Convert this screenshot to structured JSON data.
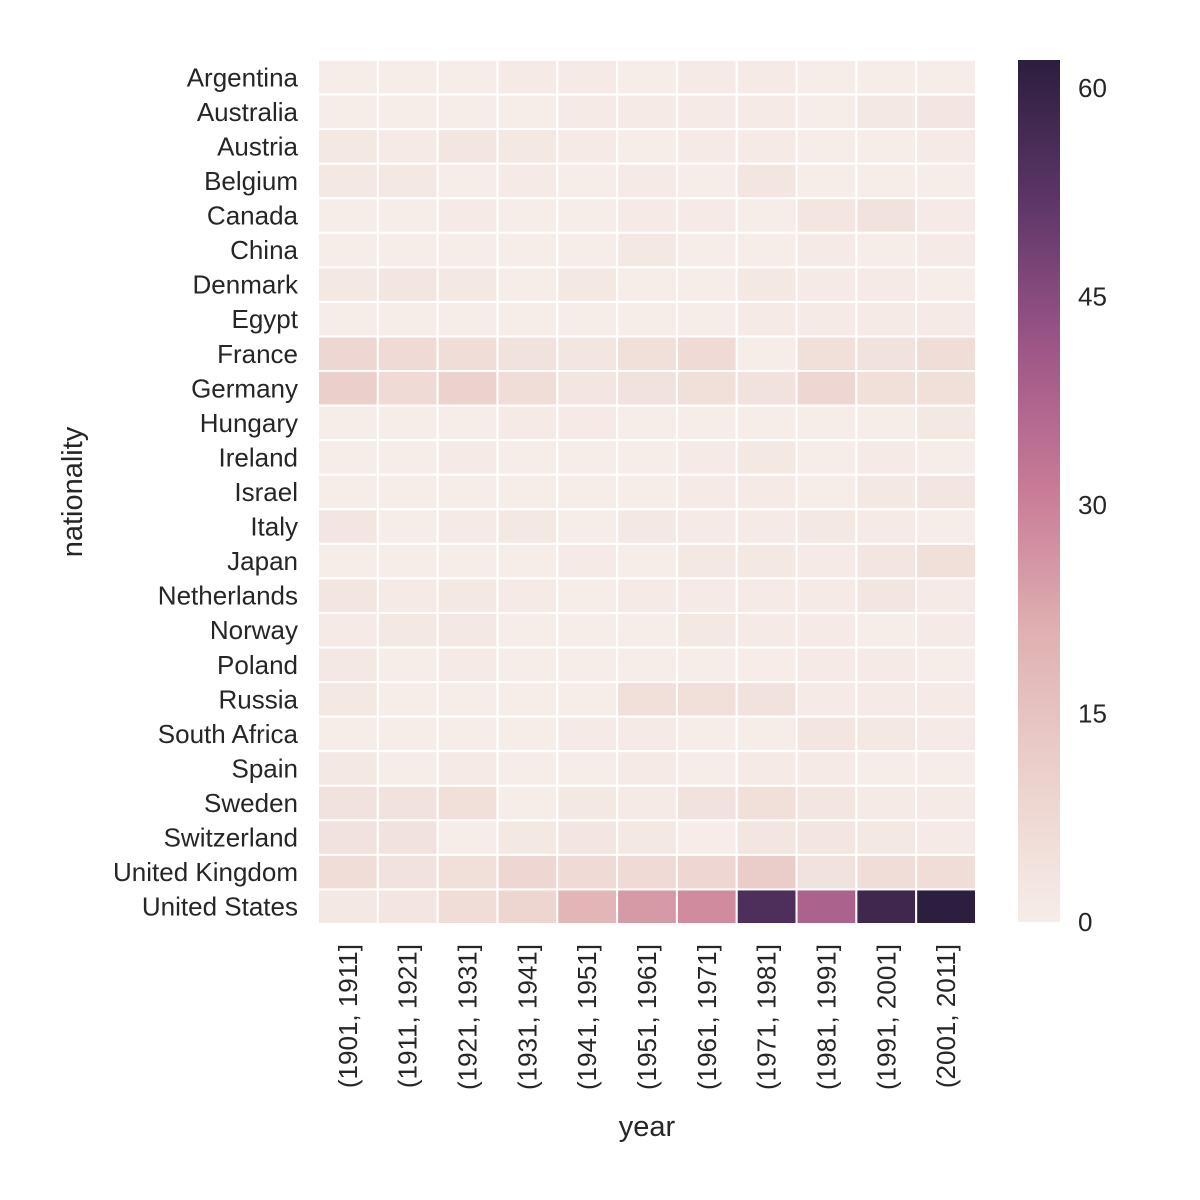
{
  "chart_data": {
    "type": "heatmap",
    "title": "",
    "xlabel": "year",
    "ylabel": "nationality",
    "x_categories": [
      "(1901, 1911]",
      "(1911, 1921]",
      "(1921, 1931]",
      "(1931, 1941]",
      "(1941, 1951]",
      "(1951, 1961]",
      "(1961, 1971]",
      "(1971, 1981]",
      "(1981, 1991]",
      "(1991, 2001]",
      "(2001, 2011]"
    ],
    "y_categories": [
      "Argentina",
      "Australia",
      "Austria",
      "Belgium",
      "Canada",
      "China",
      "Denmark",
      "Egypt",
      "France",
      "Germany",
      "Hungary",
      "Ireland",
      "Israel",
      "Italy",
      "Japan",
      "Netherlands",
      "Norway",
      "Poland",
      "Russia",
      "South Africa",
      "Spain",
      "Sweden",
      "Switzerland",
      "United Kingdom",
      "United States"
    ],
    "values": [
      [
        0,
        0,
        0,
        1,
        1,
        0,
        1,
        1,
        0,
        0,
        0
      ],
      [
        0,
        0,
        0,
        0,
        1,
        1,
        1,
        1,
        0,
        2,
        3
      ],
      [
        2,
        1,
        3,
        2,
        1,
        0,
        1,
        1,
        0,
        0,
        1
      ],
      [
        2,
        2,
        0,
        1,
        0,
        1,
        0,
        3,
        0,
        0,
        0
      ],
      [
        0,
        0,
        1,
        0,
        0,
        1,
        1,
        0,
        3,
        4,
        1
      ],
      [
        0,
        0,
        0,
        0,
        0,
        2,
        0,
        0,
        1,
        0,
        1
      ],
      [
        2,
        3,
        2,
        0,
        2,
        0,
        0,
        2,
        1,
        1,
        0
      ],
      [
        0,
        0,
        0,
        0,
        0,
        0,
        0,
        1,
        1,
        1,
        1
      ],
      [
        8,
        7,
        6,
        4,
        3,
        5,
        7,
        0,
        5,
        4,
        6
      ],
      [
        11,
        7,
        10,
        6,
        3,
        4,
        5,
        4,
        8,
        5,
        5
      ],
      [
        0,
        0,
        0,
        1,
        1,
        0,
        0,
        0,
        0,
        0,
        2
      ],
      [
        0,
        0,
        1,
        0,
        0,
        0,
        1,
        2,
        0,
        1,
        0
      ],
      [
        0,
        0,
        0,
        0,
        0,
        0,
        1,
        1,
        0,
        2,
        3
      ],
      [
        3,
        0,
        1,
        2,
        0,
        2,
        1,
        1,
        2,
        1,
        0
      ],
      [
        0,
        0,
        0,
        0,
        1,
        0,
        2,
        2,
        1,
        3,
        5
      ],
      [
        3,
        1,
        2,
        1,
        0,
        1,
        1,
        1,
        1,
        3,
        1
      ],
      [
        1,
        2,
        2,
        0,
        0,
        0,
        2,
        1,
        1,
        0,
        1
      ],
      [
        2,
        0,
        1,
        0,
        0,
        0,
        0,
        0,
        1,
        1,
        0
      ],
      [
        2,
        0,
        0,
        0,
        0,
        5,
        5,
        4,
        1,
        1,
        1
      ],
      [
        0,
        0,
        0,
        0,
        1,
        1,
        0,
        0,
        3,
        2,
        1
      ],
      [
        2,
        0,
        1,
        0,
        0,
        1,
        0,
        1,
        1,
        0,
        0
      ],
      [
        4,
        4,
        5,
        0,
        2,
        1,
        4,
        5,
        3,
        1,
        1
      ],
      [
        4,
        4,
        0,
        2,
        3,
        2,
        0,
        3,
        3,
        2,
        1
      ],
      [
        6,
        4,
        5,
        8,
        7,
        7,
        8,
        12,
        4,
        6,
        6
      ],
      [
        2,
        3,
        6,
        9,
        19,
        25,
        28,
        55,
        38,
        58,
        62
      ]
    ],
    "colorbar": {
      "min": 0,
      "max": 62,
      "ticks": [
        0,
        15,
        30,
        45,
        60
      ]
    },
    "colormap": [
      "#f6ede8",
      "#ecd1cc",
      "#e0b1b2",
      "#c97b97",
      "#9d5687",
      "#5e3668",
      "#2c1e3d"
    ],
    "gridline_color": "#ffffff",
    "grid": false,
    "legend": "colorbar-right"
  }
}
